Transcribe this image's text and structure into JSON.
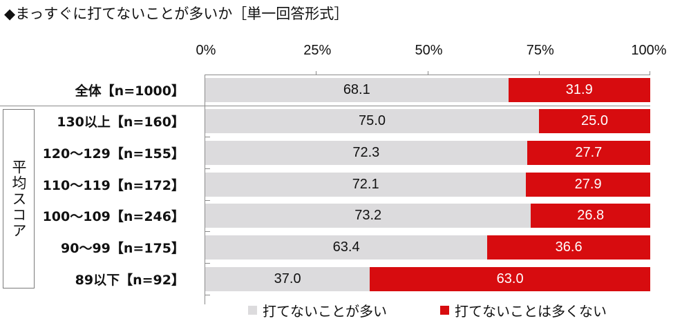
{
  "title": "◆まっすぐに打てないことが多いか［単一回答形式］",
  "axis": {
    "ticks": [
      {
        "label": "0%",
        "pct": 0
      },
      {
        "label": "25%",
        "pct": 25
      },
      {
        "label": "50%",
        "pct": 50
      },
      {
        "label": "75%",
        "pct": 75
      },
      {
        "label": "100%",
        "pct": 100
      }
    ]
  },
  "group_label": "平均スコア",
  "rows": [
    {
      "label": "全体【n=1000】",
      "often": "68.1",
      "not_often": "31.9"
    },
    {
      "label": "130以上【n=160】",
      "often": "75.0",
      "not_often": "25.0"
    },
    {
      "label": "120～129【n=155】",
      "often": "72.3",
      "not_often": "27.7"
    },
    {
      "label": "110～119【n=172】",
      "often": "72.1",
      "not_often": "27.9"
    },
    {
      "label": "100～109【n=246】",
      "often": "73.2",
      "not_often": "26.8"
    },
    {
      "label": "90～99【n=175】",
      "often": "63.4",
      "not_often": "36.6"
    },
    {
      "label": "89以下【n=92】",
      "often": "37.0",
      "not_often": "63.0"
    }
  ],
  "legend": [
    {
      "label": "打てないことが多い",
      "color": "#dcdbdd"
    },
    {
      "label": "打てないことは多くない",
      "color": "#d70c0f"
    }
  ],
  "chart_data": {
    "type": "bar",
    "orientation": "horizontal-stacked-100",
    "title": "◆まっすぐに打てないことが多いか［単一回答形式］",
    "categories": [
      "全体【n=1000】",
      "130以上【n=160】",
      "120～129【n=155】",
      "110～119【n=172】",
      "100～109【n=246】",
      "90～99【n=175】",
      "89以下【n=92】"
    ],
    "category_group": {
      "label": "平均スコア",
      "members": [
        "130以上【n=160】",
        "120～129【n=155】",
        "110～119【n=172】",
        "100～109【n=246】",
        "90～99【n=175】",
        "89以下【n=92】"
      ]
    },
    "series": [
      {
        "name": "打てないことが多い",
        "color": "#dcdbdd",
        "values": [
          68.1,
          75.0,
          72.3,
          72.1,
          73.2,
          63.4,
          37.0
        ]
      },
      {
        "name": "打てないことは多くない",
        "color": "#d70c0f",
        "values": [
          31.9,
          25.0,
          27.7,
          27.9,
          26.8,
          36.6,
          63.0
        ]
      }
    ],
    "xlabel": "",
    "ylabel": "",
    "xlim": [
      0,
      100
    ],
    "xticks": [
      "0%",
      "25%",
      "50%",
      "75%",
      "100%"
    ],
    "xaxis_position": "top",
    "grid": false,
    "legend_position": "bottom"
  }
}
